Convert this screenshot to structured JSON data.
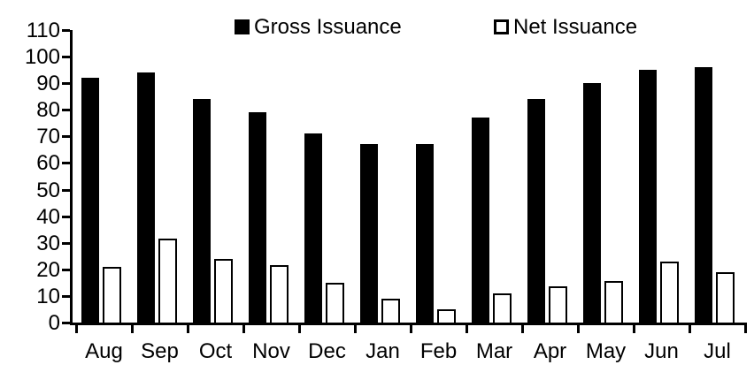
{
  "window": {
    "background": "#ffffff"
  },
  "chart_data": {
    "type": "bar",
    "title": "",
    "xlabel": "",
    "ylabel": "",
    "categories": [
      "Aug",
      "Sep",
      "Oct",
      "Nov",
      "Dec",
      "Jan",
      "Feb",
      "Mar",
      "Apr",
      "May",
      "Jun",
      "Jul"
    ],
    "series": [
      {
        "name": "Gross Issuance",
        "style": "solid",
        "color": "#000000",
        "values": [
          92,
          94,
          84,
          79,
          71,
          67,
          67,
          77,
          84,
          90,
          95,
          96
        ]
      },
      {
        "name": "Net Issuance",
        "style": "outline",
        "fill_color": "#ffffff",
        "border_color": "#000000",
        "values": [
          21,
          31.5,
          24,
          21.5,
          15,
          9,
          5,
          11,
          13.5,
          15.5,
          23,
          19
        ]
      }
    ],
    "ylim": [
      0,
      110
    ],
    "yticks": [
      0,
      10,
      20,
      30,
      40,
      50,
      60,
      70,
      80,
      90,
      100,
      110
    ],
    "grid": false,
    "legend_position": "top-center",
    "axis_color": "#000000"
  }
}
